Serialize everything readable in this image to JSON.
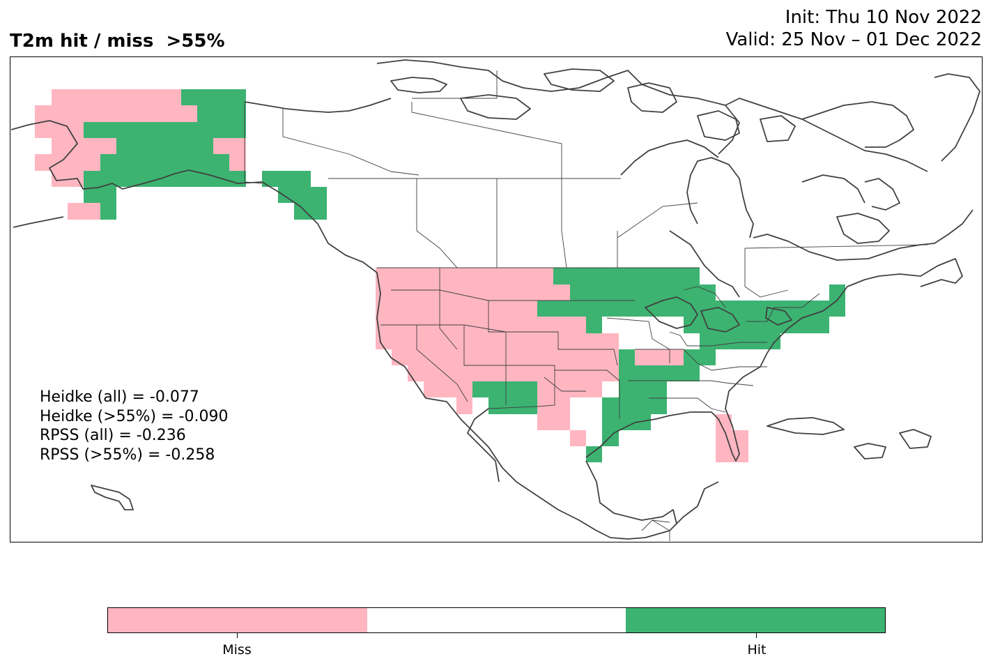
{
  "title": "T2m hit / miss  >55%",
  "init_label": "Init: Thu 10 Nov 2022",
  "valid_label": "Valid: 25 Nov – 01 Dec 2022",
  "stats": [
    "Heidke (all) = -0.077",
    "Heidke (>55%) = -0.090",
    "RPSS (all) = -0.236",
    "RPSS (>55%) = -0.258"
  ],
  "legend": {
    "miss_label": "Miss",
    "hit_label": "Hit",
    "miss_color": "#FFB6C1",
    "neutral_color": "#FFFFFF",
    "hit_color": "#3CB371"
  },
  "colors": {
    "miss": "#FFB6C1",
    "hit": "#3CB371",
    "coastline": "#404040",
    "frame": "#000000"
  },
  "map": {
    "region": "North America",
    "projection": "PlateCarree",
    "lon_range": [
      -180,
      -60
    ],
    "lat_range": [
      15,
      75
    ]
  }
}
